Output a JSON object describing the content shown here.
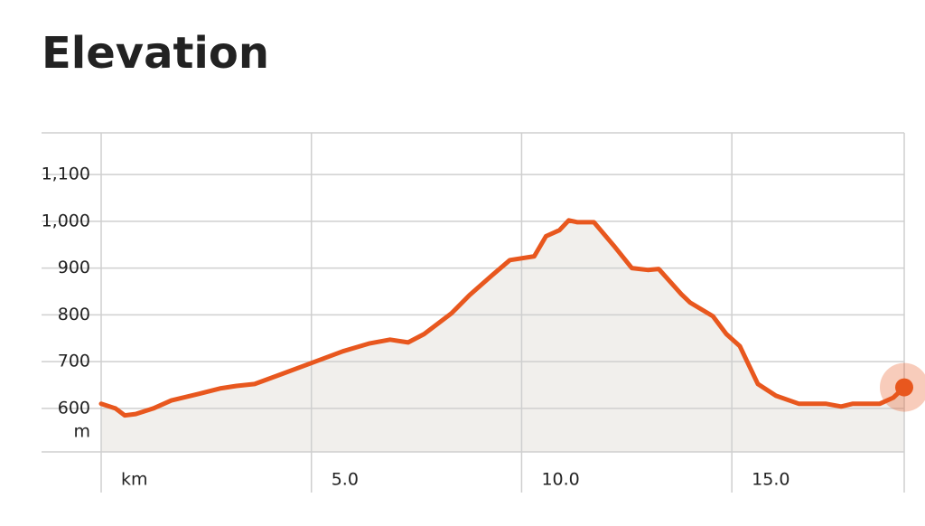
{
  "chart_data": {
    "type": "area",
    "title": "Elevation",
    "x_label": "km",
    "y_label": "m",
    "x": [
      0,
      0.34,
      0.56,
      0.82,
      1.24,
      1.67,
      2.32,
      2.85,
      3.22,
      3.65,
      4.25,
      5.0,
      5.75,
      6.39,
      6.87,
      7.3,
      7.68,
      8.33,
      8.76,
      9.29,
      9.72,
      10.3,
      10.58,
      10.9,
      11.12,
      11.33,
      11.72,
      12.19,
      12.62,
      13.0,
      13.26,
      13.8,
      14.01,
      14.55,
      14.87,
      15.19,
      15.62,
      16.05,
      16.59,
      17.23,
      17.6,
      17.88,
      18.52,
      18.84,
      19.1
    ],
    "values": [
      610,
      600,
      585,
      588,
      600,
      617,
      631,
      643,
      648,
      652,
      672,
      697,
      722,
      739,
      747,
      741,
      759,
      803,
      842,
      884,
      917,
      925,
      968,
      981,
      1002,
      998,
      998,
      948,
      900,
      896,
      898,
      844,
      826,
      797,
      759,
      733,
      652,
      627,
      610,
      610,
      604,
      610,
      610,
      623,
      645
    ],
    "color": "#e8571e",
    "fill": "#f1efec",
    "xlim": [
      0,
      19.1
    ],
    "ylim": [
      507,
      1189
    ],
    "xticks": [
      {
        "value": 5,
        "label": "5.0"
      },
      {
        "value": 10,
        "label": "10.0"
      },
      {
        "value": 15,
        "label": "15.0"
      }
    ],
    "yticks": [
      600,
      700,
      800,
      900,
      {
        "value": 1000,
        "label": "1,000"
      },
      {
        "value": 1100,
        "label": "1,100"
      }
    ],
    "grid": true
  }
}
